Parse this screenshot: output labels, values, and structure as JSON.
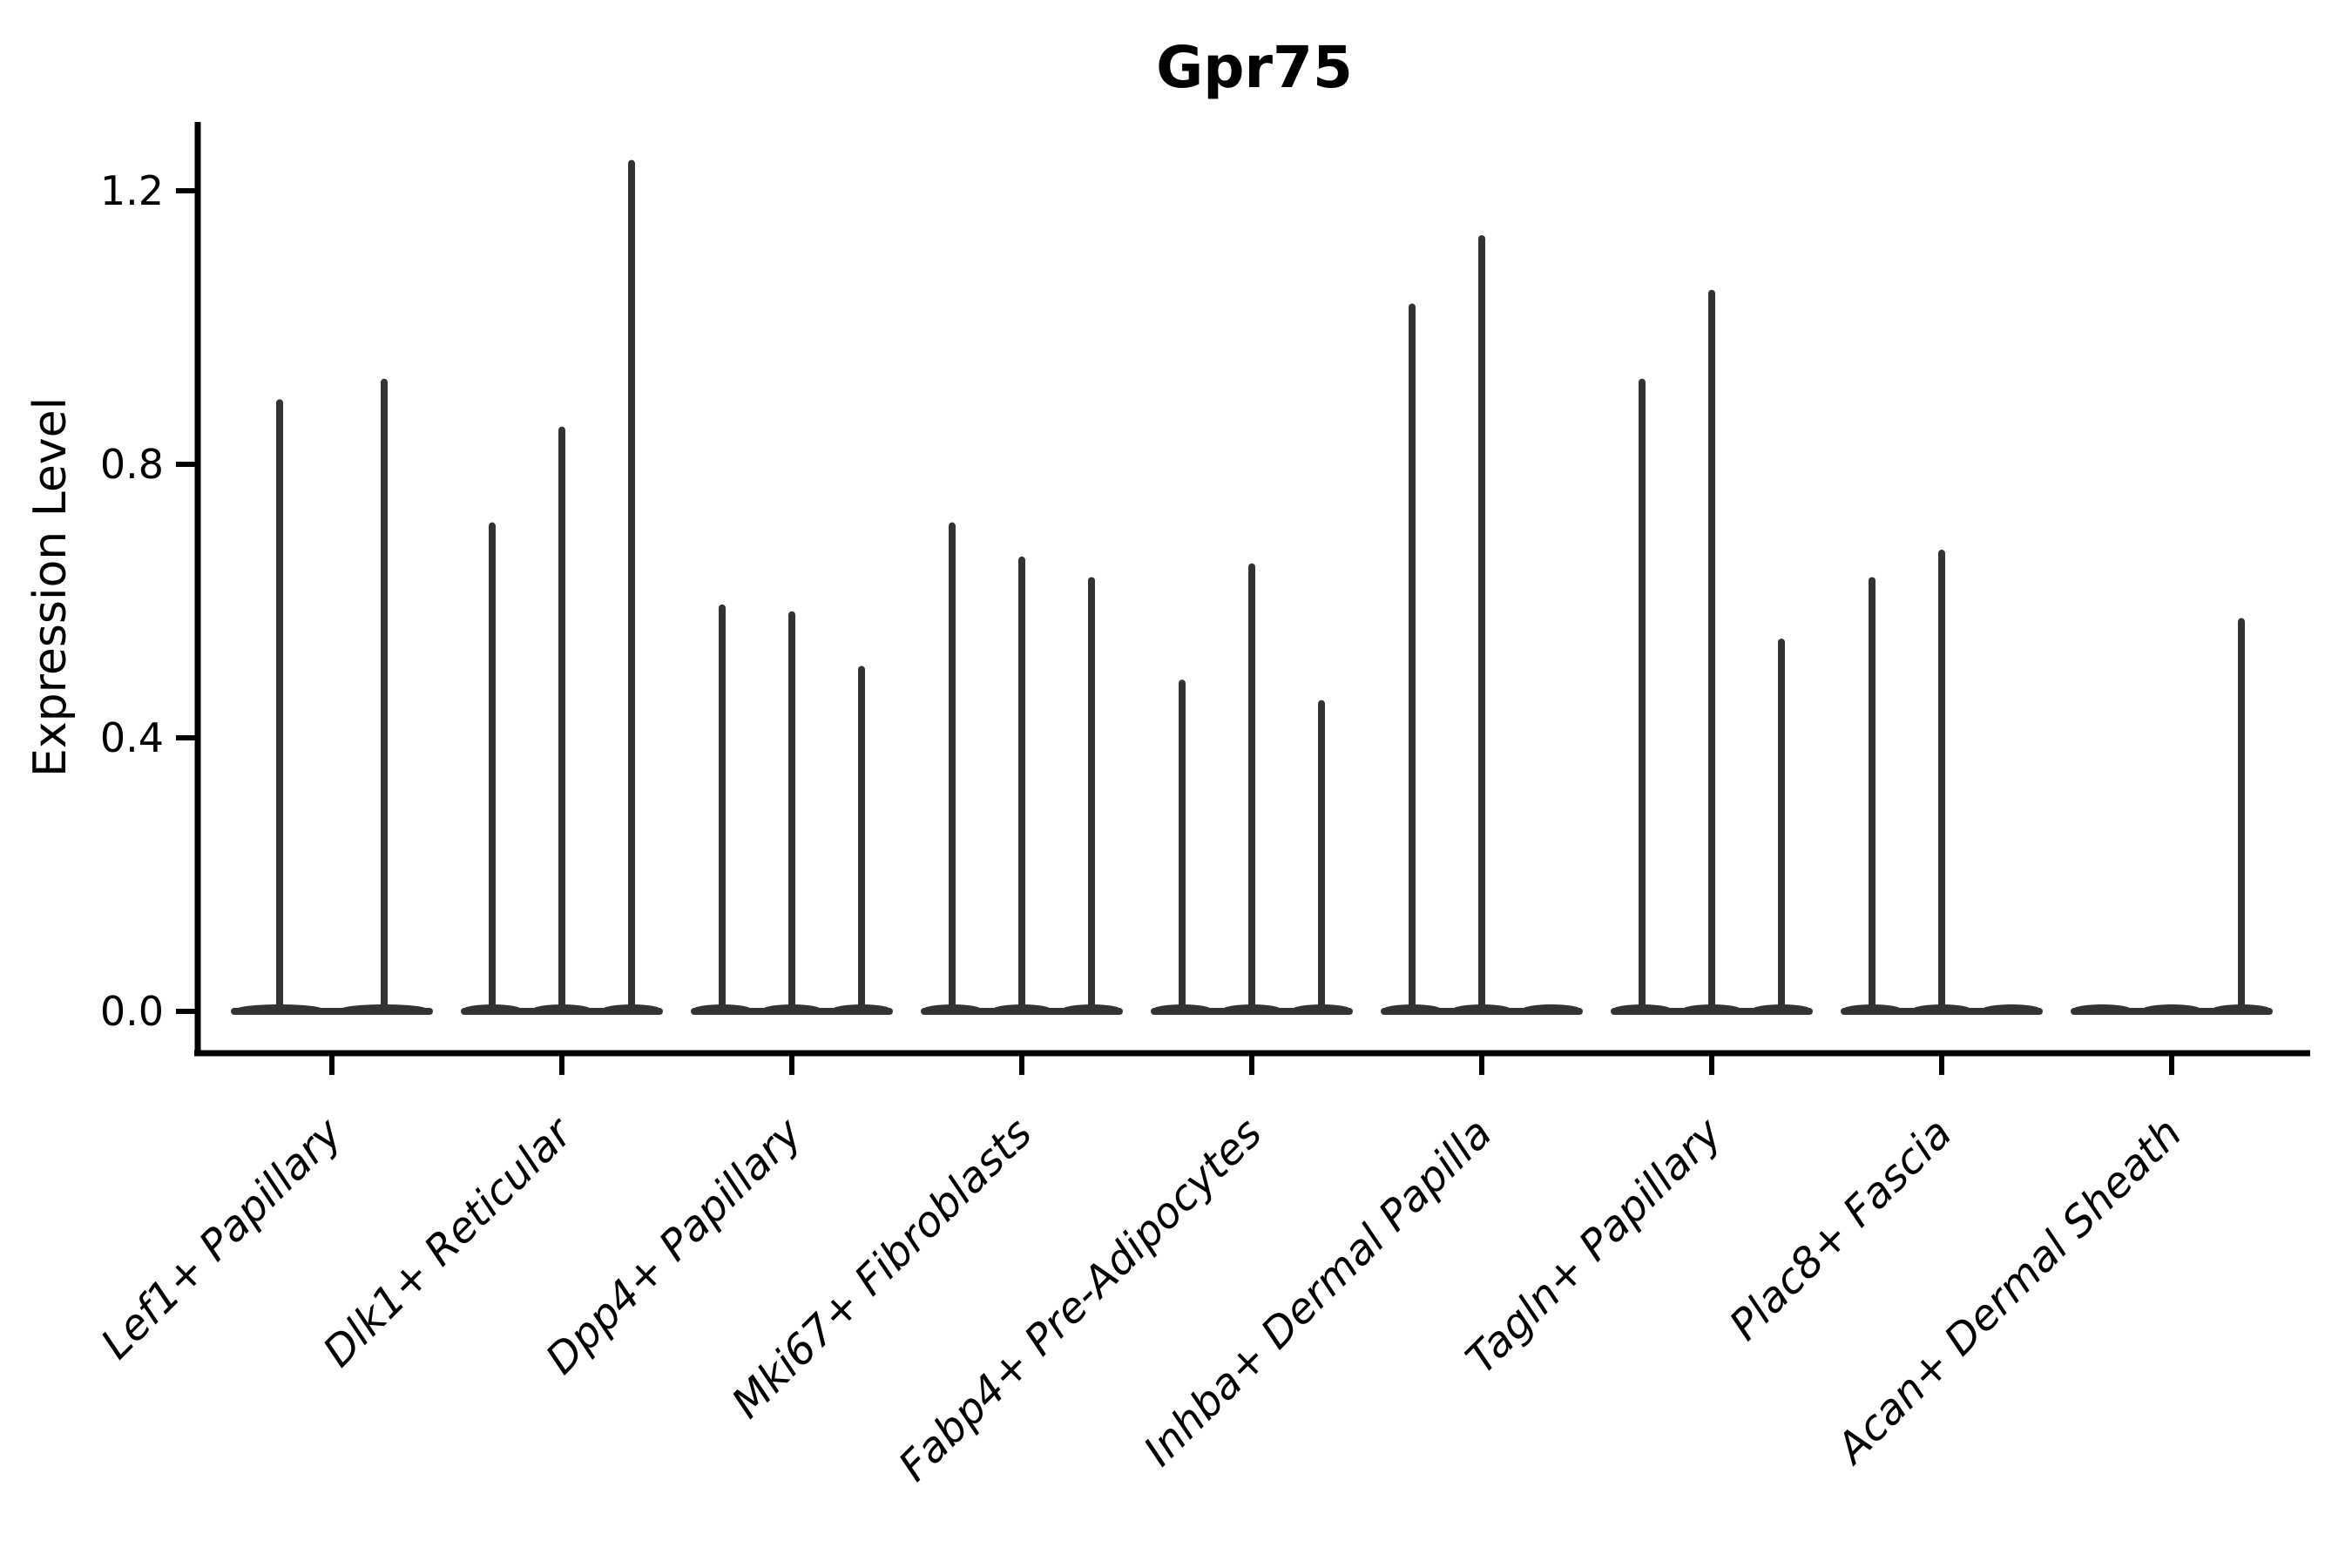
{
  "chart_data": {
    "type": "violin",
    "title": "Gpr75",
    "ylabel": "Expression Level",
    "xlabel": "",
    "yticks": [
      "0.0",
      "0.4",
      "0.8",
      "1.2"
    ],
    "ytick_values": [
      0.0,
      0.4,
      0.8,
      1.2
    ],
    "ylim": [
      -0.06,
      1.3
    ],
    "grid": false,
    "legend": "none",
    "axis_color": "#000000",
    "violin_color": "#333333",
    "background_color": "#ffffff",
    "categories": [
      {
        "label": "Lef1+ Papillary",
        "violins": [
          0.89,
          0.92
        ]
      },
      {
        "label": "Dlk1+ Reticular",
        "violins": [
          0.71,
          0.85,
          1.24
        ]
      },
      {
        "label": "Dpp4+ Papillary",
        "violins": [
          0.59,
          0.58,
          0.5
        ]
      },
      {
        "label": "Mki67+ Fibroblasts",
        "violins": [
          0.71,
          0.66,
          0.63
        ]
      },
      {
        "label": "Fabp4+ Pre-Adipocytes",
        "violins": [
          0.48,
          0.65,
          0.45
        ]
      },
      {
        "label": "Inhba+ Dermal Papilla",
        "violins": [
          1.03,
          1.13,
          0
        ]
      },
      {
        "label": "Tagln+ Papillary",
        "violins": [
          0.92,
          1.05,
          0.54
        ]
      },
      {
        "label": "Plac8+ Fascia",
        "violins": [
          0.63,
          0.67,
          0
        ]
      },
      {
        "label": "Acan+ Dermal Sheath",
        "violins": [
          0,
          0,
          0.57
        ]
      }
    ]
  }
}
